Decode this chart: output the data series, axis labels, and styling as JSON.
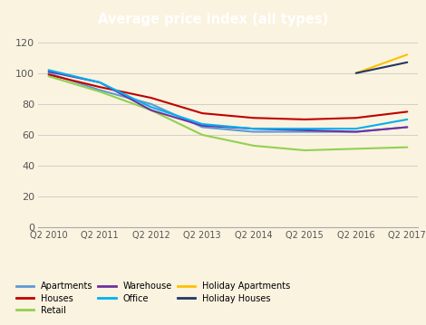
{
  "title": "Average price index (all types)",
  "title_bg": "#6b6b6b",
  "title_color": "white",
  "plot_bg": "#faf3e0",
  "xtick_labels": [
    "Q2 2010",
    "Q2 2011",
    "Q2 2012",
    "Q2 2013",
    "Q2 2014",
    "Q2 2015",
    "Q2 2016",
    "Q2 2017"
  ],
  "ylim": [
    0,
    120
  ],
  "yticks": [
    0,
    20,
    40,
    60,
    80,
    100,
    120
  ],
  "series": {
    "Apartments": {
      "color": "#5b9bd5",
      "data": [
        100,
        89,
        80,
        65,
        62,
        62,
        62,
        65
      ]
    },
    "Houses": {
      "color": "#c00000",
      "data": [
        99,
        91,
        84,
        74,
        71,
        70,
        71,
        75
      ]
    },
    "Retail": {
      "color": "#92d050",
      "data": [
        98,
        88,
        76,
        60,
        53,
        50,
        51,
        52
      ]
    },
    "Warehouse": {
      "color": "#7030a0",
      "data": [
        101,
        94,
        76,
        66,
        64,
        63,
        62,
        65
      ]
    },
    "Office": {
      "color": "#00b0f0",
      "data": [
        102,
        94,
        78,
        67,
        64,
        64,
        64,
        70
      ]
    },
    "Holiday Apartments": {
      "color": "#ffc000",
      "data": [
        null,
        null,
        null,
        null,
        null,
        null,
        100,
        112
      ]
    },
    "Holiday Houses": {
      "color": "#1f3864",
      "data": [
        null,
        null,
        null,
        null,
        null,
        null,
        100,
        107
      ]
    }
  },
  "legend_order": [
    "Apartments",
    "Houses",
    "Retail",
    "Warehouse",
    "Office",
    "Holiday Apartments",
    "Holiday Houses"
  ],
  "figsize": [
    4.7,
    3.59
  ],
  "dpi": 100
}
